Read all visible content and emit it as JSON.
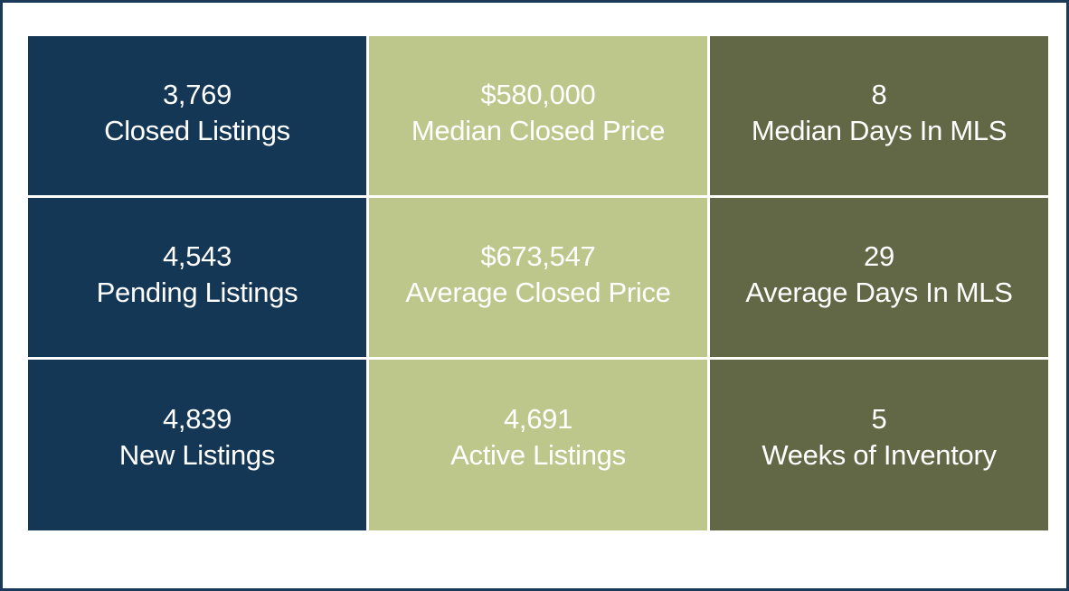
{
  "colors": {
    "frame_border": "#1b3a59",
    "navy": "#153756",
    "sage": "#bdc78c",
    "olive": "#626846",
    "text": "#ffffff"
  },
  "tiles": [
    {
      "value": "3,769",
      "label": "Closed Listings",
      "color": "#153756"
    },
    {
      "value": "$580,000",
      "label": "Median Closed Price",
      "color": "#bdc78c"
    },
    {
      "value": "8",
      "label": "Median Days In MLS",
      "color": "#626846"
    },
    {
      "value": "4,543",
      "label": "Pending Listings",
      "color": "#153756"
    },
    {
      "value": "$673,547",
      "label": "Average Closed Price",
      "color": "#bdc78c"
    },
    {
      "value": "29",
      "label": "Average Days In MLS",
      "color": "#626846"
    },
    {
      "value": "4,839",
      "label": "New Listings",
      "color": "#153756"
    },
    {
      "value": "4,691",
      "label": "Active Listings",
      "color": "#bdc78c"
    },
    {
      "value": "5",
      "label": "Weeks of Inventory",
      "color": "#626846"
    }
  ]
}
